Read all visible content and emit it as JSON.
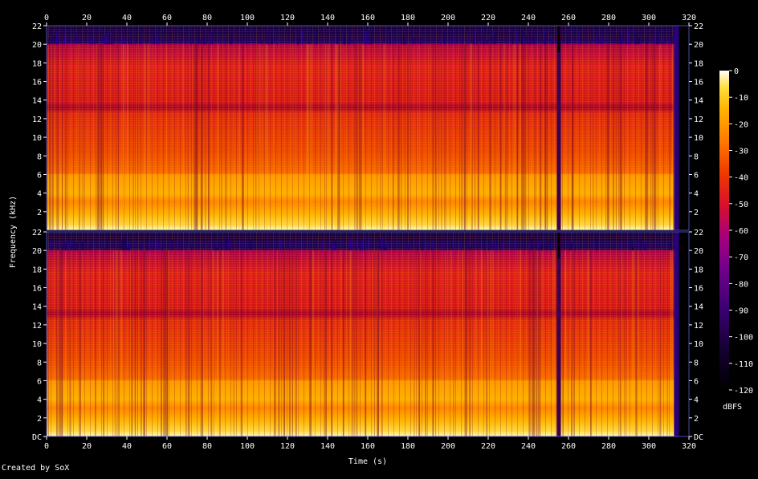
{
  "chart_data": {
    "type": "heatmap",
    "subtype": "spectrogram",
    "channels": 2,
    "xlabel": "Time (s)",
    "ylabel": "Frequency (kHz)",
    "xlim": [
      0,
      320
    ],
    "ylim": [
      0,
      22
    ],
    "x_ticks": [
      "0",
      "20",
      "40",
      "60",
      "80",
      "100",
      "120",
      "140",
      "160",
      "180",
      "200",
      "220",
      "240",
      "260",
      "280",
      "300",
      "320"
    ],
    "y_ticks": [
      "DC",
      "2",
      "4",
      "6",
      "8",
      "10",
      "12",
      "14",
      "16",
      "18",
      "20",
      "22"
    ],
    "colorbar": {
      "label": "dBFS",
      "range": [
        -120,
        0
      ],
      "ticks": [
        "0",
        "-10",
        "-20",
        "-30",
        "-40",
        "-50",
        "-60",
        "-70",
        "-80",
        "-90",
        "-100",
        "-110",
        "-120"
      ],
      "palette": [
        "#000000",
        "#14002e",
        "#3c0070",
        "#74008a",
        "#a8007c",
        "#d8102c",
        "#ef3a00",
        "#ff7a00",
        "#ffb400",
        "#ffe040",
        "#ffffff"
      ]
    },
    "audio_end_s": 315,
    "dropout_s": 255,
    "lowpass_cutoff_khz": 20,
    "colors": {
      "background": "#000000",
      "grid_border": "#4a4aaa",
      "text": "#ffffff"
    }
  },
  "footer": "Created by SoX"
}
